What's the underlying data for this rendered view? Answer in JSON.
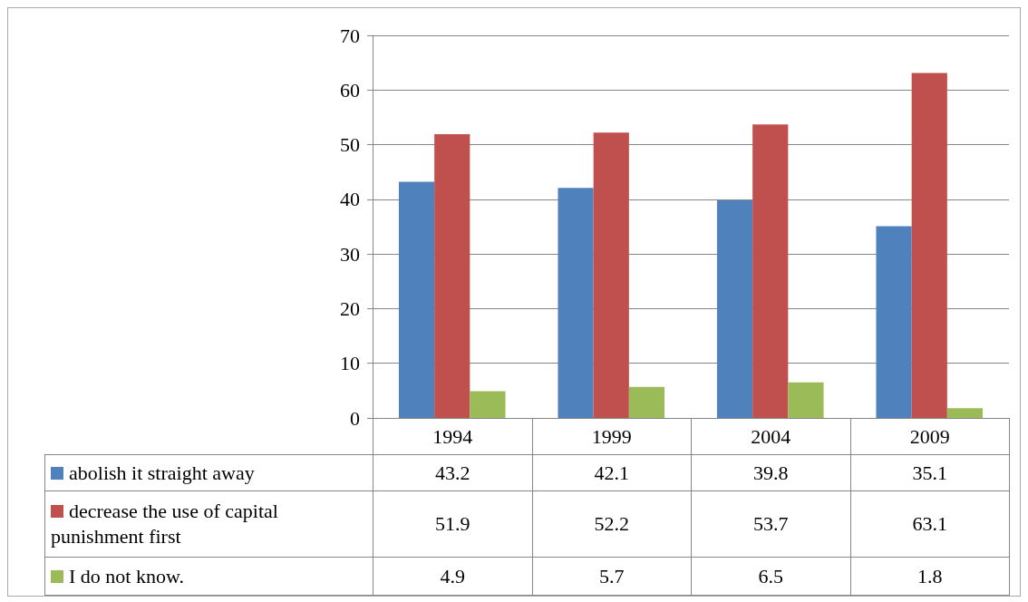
{
  "chart_data": {
    "type": "bar",
    "categories": [
      "1994",
      "1999",
      "2004",
      "2009"
    ],
    "series": [
      {
        "name": "abolish it straight away",
        "color": "#4f81bd",
        "values": [
          43.2,
          42.1,
          39.8,
          35.1
        ]
      },
      {
        "name": "decrease the use of capital punishment first",
        "color": "#c0504d",
        "values": [
          51.9,
          52.2,
          53.7,
          63.1
        ]
      },
      {
        "name": "I do not know.",
        "color": "#9bbb59",
        "values": [
          4.9,
          5.7,
          6.5,
          1.8
        ]
      }
    ],
    "ylim": [
      0,
      70
    ],
    "yticks": [
      0,
      10,
      20,
      30,
      40,
      50,
      60,
      70
    ],
    "grid": "y",
    "legend": "bottom",
    "data_labels": true
  }
}
